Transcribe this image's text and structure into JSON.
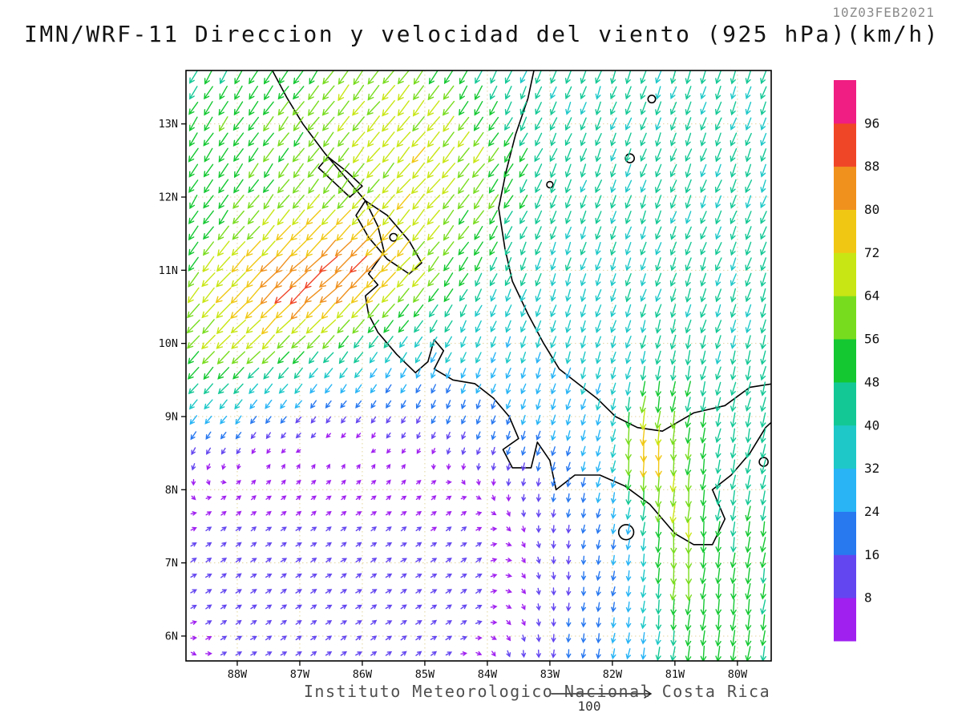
{
  "chart_data": {
    "type": "vector-field-map",
    "title": "IMN/WRF-11 Direccion y velocidad del viento (925 hPa)(km/h)",
    "timestamp": "10Z03FEB2021",
    "model": "IMN/WRF-11",
    "variable": "Direccion y velocidad del viento",
    "level": "925 hPa",
    "units": "km/h",
    "caption": "Instituto Meteorologico Nacional Costa Rica",
    "reference_vector_label": "100",
    "reference_vector_value": 100,
    "lon_range": [
      -88.82,
      -79.46
    ],
    "lat_range": [
      5.66,
      13.73
    ],
    "x_ticks": [
      {
        "label": "88W",
        "lon": -88
      },
      {
        "label": "87W",
        "lon": -87
      },
      {
        "label": "86W",
        "lon": -86
      },
      {
        "label": "85W",
        "lon": -85
      },
      {
        "label": "84W",
        "lon": -84
      },
      {
        "label": "83W",
        "lon": -83
      },
      {
        "label": "82W",
        "lon": -82
      },
      {
        "label": "81W",
        "lon": -81
      },
      {
        "label": "80W",
        "lon": -80
      }
    ],
    "y_ticks": [
      {
        "label": "6N",
        "lat": 6
      },
      {
        "label": "7N",
        "lat": 7
      },
      {
        "label": "8N",
        "lat": 8
      },
      {
        "label": "9N",
        "lat": 9
      },
      {
        "label": "10N",
        "lat": 10
      },
      {
        "label": "11N",
        "lat": 11
      },
      {
        "label": "12N",
        "lat": 12
      },
      {
        "label": "13N",
        "lat": 13
      }
    ],
    "grid": {
      "lon_step_deg": 0.24,
      "lat_step_deg": 0.213
    },
    "colorbar": {
      "levels": [
        8,
        16,
        24,
        32,
        40,
        48,
        56,
        64,
        72,
        80,
        88,
        96
      ],
      "colors": [
        "#A020F0",
        "#6446F0",
        "#2878F0",
        "#28B4F5",
        "#1EC8C8",
        "#14C896",
        "#14C832",
        "#78DC1E",
        "#C8E614",
        "#F0C814",
        "#F0911E",
        "#F04628",
        "#F01E82"
      ]
    },
    "wind_features": {
      "base": {
        "u": -9,
        "v": -33
      },
      "ne_boost": {
        "lon": -80.5,
        "lat": 12.5,
        "sx": 4.0,
        "sy": 3.0,
        "du": -6,
        "dv": -6
      },
      "jets": [
        {
          "lon": -86.3,
          "lat": 11.0,
          "sx": 1.7,
          "sy": 1.0,
          "amp": 1.0
        },
        {
          "lon": -88.0,
          "lat": 10.0,
          "sx": 1.8,
          "sy": 1.2,
          "amp": 0.85
        },
        {
          "lon": -84.6,
          "lat": 12.3,
          "sx": 1.3,
          "sy": 0.9,
          "amp": 0.5
        },
        {
          "lon": -88.5,
          "lat": 12.8,
          "sx": 2.0,
          "sy": 1.5,
          "amp": 0.4
        },
        {
          "lon": -85.8,
          "lat": 13.3,
          "sx": 1.6,
          "sy": 1.0,
          "amp": 0.55
        }
      ],
      "jet_vector": {
        "du": -47,
        "dv": -26,
        "cap": 1.45
      },
      "panama_jets": [
        {
          "lon": -81.0,
          "lat": 7.6,
          "sx": 0.5,
          "sy": 1.9,
          "amp": 1.2
        },
        {
          "lon": -81.55,
          "lat": 8.55,
          "sx": 0.35,
          "sy": 0.65,
          "amp": 1.5
        },
        {
          "lon": -80.0,
          "lat": 6.2,
          "sx": 0.9,
          "sy": 1.6,
          "amp": 0.7
        },
        {
          "lon": -79.6,
          "lat": 8.8,
          "sx": 0.8,
          "sy": 1.4,
          "amp": 0.35
        }
      ],
      "panama_vector": {
        "du": 3,
        "dv": -30
      },
      "calm": {
        "lon": -86.4,
        "lat": 6.9,
        "sx": 3.4,
        "sy": 2.3,
        "scale": 1.6,
        "shear_lat": 8.45,
        "shear_width": 0.85,
        "u_amp": 8.5,
        "v_amp": 4.0,
        "v_off": 1.5
      }
    },
    "geography": {
      "coastlines": [
        [
          [
            -87.45,
            13.75
          ],
          [
            -87.2,
            13.35
          ],
          [
            -86.95,
            13.0
          ],
          [
            -86.6,
            12.6
          ],
          [
            -86.3,
            12.3
          ],
          [
            -85.95,
            11.95
          ],
          [
            -85.75,
            11.6
          ],
          [
            -85.65,
            11.25
          ],
          [
            -85.9,
            10.95
          ],
          [
            -85.75,
            10.8
          ],
          [
            -85.95,
            10.65
          ],
          [
            -85.9,
            10.4
          ],
          [
            -85.75,
            10.15
          ],
          [
            -85.45,
            9.85
          ],
          [
            -85.15,
            9.6
          ],
          [
            -84.95,
            9.75
          ],
          [
            -84.85,
            10.05
          ],
          [
            -84.7,
            9.9
          ],
          [
            -84.85,
            9.65
          ],
          [
            -84.55,
            9.5
          ],
          [
            -84.2,
            9.45
          ],
          [
            -83.9,
            9.25
          ],
          [
            -83.65,
            9.0
          ],
          [
            -83.5,
            8.7
          ],
          [
            -83.75,
            8.55
          ],
          [
            -83.6,
            8.3
          ],
          [
            -83.3,
            8.3
          ],
          [
            -83.2,
            8.65
          ],
          [
            -83.0,
            8.4
          ],
          [
            -82.9,
            8.0
          ],
          [
            -82.6,
            8.2
          ],
          [
            -82.2,
            8.2
          ],
          [
            -81.8,
            8.05
          ],
          [
            -81.4,
            7.8
          ],
          [
            -81.0,
            7.4
          ],
          [
            -80.7,
            7.25
          ],
          [
            -80.4,
            7.25
          ],
          [
            -80.2,
            7.6
          ],
          [
            -80.4,
            8.0
          ],
          [
            -80.1,
            8.2
          ],
          [
            -79.8,
            8.5
          ],
          [
            -79.55,
            8.85
          ],
          [
            -79.42,
            8.95
          ]
        ],
        [
          [
            -79.42,
            9.45
          ],
          [
            -79.8,
            9.4
          ],
          [
            -80.2,
            9.15
          ],
          [
            -80.7,
            9.05
          ],
          [
            -81.2,
            8.8
          ],
          [
            -81.6,
            8.85
          ],
          [
            -81.95,
            9.0
          ],
          [
            -82.25,
            9.25
          ],
          [
            -82.55,
            9.45
          ],
          [
            -82.85,
            9.65
          ],
          [
            -83.1,
            10.0
          ],
          [
            -83.35,
            10.4
          ],
          [
            -83.6,
            10.85
          ],
          [
            -83.72,
            11.3
          ],
          [
            -83.82,
            11.85
          ],
          [
            -83.7,
            12.35
          ],
          [
            -83.55,
            12.85
          ],
          [
            -83.35,
            13.35
          ],
          [
            -83.25,
            13.75
          ]
        ]
      ],
      "lakes": [
        [
          [
            -85.95,
            11.95
          ],
          [
            -85.6,
            11.75
          ],
          [
            -85.25,
            11.4
          ],
          [
            -85.05,
            11.1
          ],
          [
            -85.25,
            10.95
          ],
          [
            -85.6,
            11.15
          ],
          [
            -85.9,
            11.45
          ],
          [
            -86.1,
            11.75
          ]
        ],
        [
          [
            -86.55,
            12.55
          ],
          [
            -86.25,
            12.35
          ],
          [
            -86.0,
            12.15
          ],
          [
            -86.2,
            12.0
          ],
          [
            -86.45,
            12.2
          ],
          [
            -86.7,
            12.4
          ]
        ]
      ],
      "islands": [
        {
          "lon": -81.72,
          "lat": 12.53,
          "r": 0.07
        },
        {
          "lon": -81.37,
          "lat": 13.34,
          "r": 0.06
        },
        {
          "lon": -83.0,
          "lat": 12.17,
          "r": 0.05
        },
        {
          "lon": -81.78,
          "lat": 7.42,
          "r": 0.12
        },
        {
          "lon": -79.58,
          "lat": 8.38,
          "r": 0.07
        },
        {
          "lon": -85.5,
          "lat": 11.45,
          "r": 0.06
        }
      ]
    }
  }
}
